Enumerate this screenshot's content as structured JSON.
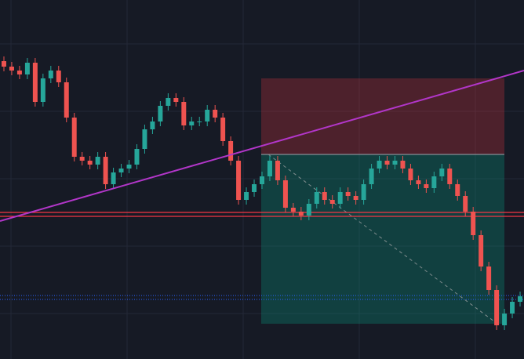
{
  "chart_data": {
    "type": "candlestick",
    "open": [
      380,
      373,
      368,
      363,
      378,
      328,
      358,
      368,
      353,
      308,
      258,
      253,
      248,
      258,
      223,
      238,
      243,
      248,
      268,
      293,
      303,
      323,
      333,
      328,
      298,
      303,
      303,
      318,
      308,
      278,
      253,
      203,
      213,
      223,
      233,
      253,
      228,
      193,
      188,
      183,
      198,
      213,
      203,
      198,
      213,
      208,
      203,
      223,
      243,
      253,
      248,
      253,
      243,
      228,
      223,
      218,
      233,
      243,
      223,
      208,
      188,
      158,
      118,
      88,
      43,
      58,
      73
    ],
    "high": [
      386,
      379,
      374,
      384,
      384,
      364,
      374,
      374,
      359,
      314,
      264,
      259,
      264,
      264,
      244,
      249,
      254,
      274,
      299,
      309,
      329,
      339,
      339,
      334,
      309,
      309,
      324,
      324,
      314,
      284,
      259,
      219,
      229,
      239,
      259,
      259,
      234,
      199,
      194,
      204,
      219,
      219,
      209,
      219,
      219,
      214,
      229,
      249,
      259,
      259,
      259,
      259,
      249,
      234,
      229,
      239,
      249,
      249,
      229,
      214,
      194,
      164,
      124,
      94,
      64,
      79,
      86
    ],
    "low": [
      367,
      362,
      357,
      357,
      322,
      322,
      352,
      347,
      302,
      252,
      247,
      242,
      242,
      217,
      217,
      232,
      237,
      242,
      262,
      287,
      297,
      317,
      322,
      292,
      292,
      297,
      297,
      302,
      272,
      247,
      197,
      197,
      207,
      217,
      227,
      222,
      187,
      182,
      177,
      177,
      192,
      197,
      192,
      192,
      202,
      197,
      197,
      217,
      237,
      242,
      242,
      237,
      222,
      217,
      212,
      212,
      227,
      217,
      202,
      182,
      152,
      112,
      82,
      37,
      37,
      52,
      67
    ],
    "close": [
      373,
      368,
      363,
      378,
      328,
      358,
      368,
      353,
      308,
      258,
      253,
      248,
      258,
      223,
      238,
      243,
      248,
      268,
      293,
      303,
      323,
      333,
      328,
      298,
      303,
      303,
      318,
      308,
      278,
      253,
      203,
      213,
      223,
      233,
      253,
      228,
      193,
      188,
      183,
      198,
      213,
      203,
      198,
      213,
      208,
      203,
      223,
      243,
      253,
      248,
      253,
      243,
      228,
      223,
      218,
      233,
      243,
      223,
      208,
      188,
      158,
      118,
      88,
      43,
      58,
      73,
      80
    ],
    "up_color": "#26a69a",
    "down_color": "#ef5350",
    "ylim": [
      0,
      458
    ]
  }
}
